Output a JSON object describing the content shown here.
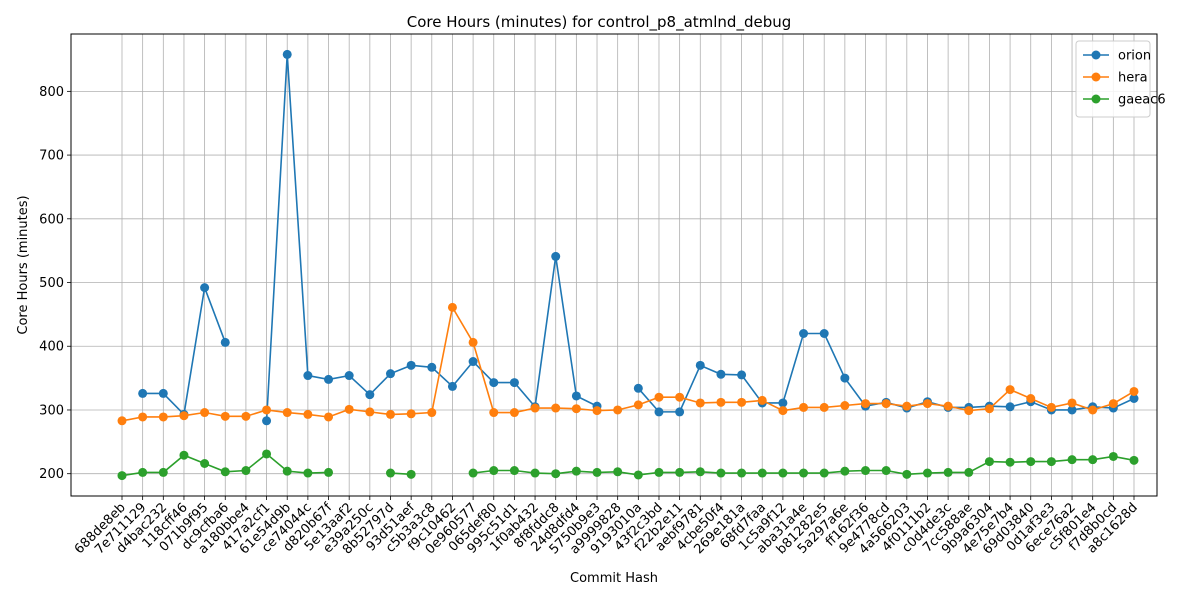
{
  "chart_data": {
    "type": "line",
    "title": "Core Hours (minutes) for control_p8_atmlnd_debug",
    "xlabel": "Commit Hash",
    "ylabel": "Core Hours (minutes)",
    "ylim": [
      165,
      890
    ],
    "yticks": [
      200,
      300,
      400,
      500,
      600,
      700,
      800
    ],
    "grid": true,
    "legend_position": "top-right",
    "categories": [
      "688de8eb",
      "7e711129",
      "d4bac232",
      "118cff46",
      "071b9f95",
      "dc9cfba6",
      "a180bbe4",
      "417a2cf1",
      "61e54d9b",
      "ce74044c",
      "d820b67f",
      "5e13aaf2",
      "e39a250c",
      "8b52797d",
      "93d51aef",
      "c5b3a3c8",
      "f9c10462",
      "0e960577",
      "065def80",
      "995c51d1",
      "1f0ab432",
      "8f8fddc8",
      "24d8dfd4",
      "5750b9e3",
      "a9999828",
      "9193010a",
      "43f2c3bd",
      "f22b2e11",
      "aebf9781",
      "4cbe50f4",
      "269e181a",
      "68fd7faa",
      "1c5a9f12",
      "aba31a4e",
      "b81282e5",
      "5a297a6e",
      "ff162f36",
      "9e4778cd",
      "4a566203",
      "4f0111b2",
      "c0d4de3c",
      "7cc588ae",
      "9b9a6304",
      "4e75e7b4",
      "69d03840",
      "0d1af3e3",
      "6ece76a2",
      "c5f801e4",
      "f7d8b0cd",
      "a8c1628d"
    ],
    "series": [
      {
        "name": "orion",
        "color": "#1f77b4",
        "values": [
          null,
          326,
          326,
          293,
          492,
          406,
          null,
          283,
          858,
          354,
          348,
          354,
          324,
          357,
          370,
          367,
          337,
          376,
          343,
          343,
          305,
          541,
          322,
          306,
          null,
          334,
          297,
          297,
          370,
          356,
          355,
          311,
          311,
          420,
          420,
          350,
          306,
          312,
          303,
          313,
          304,
          304,
          306,
          305,
          313,
          300,
          300,
          305,
          303,
          318
        ]
      },
      {
        "name": "hera",
        "color": "#ff7f0e",
        "values": [
          283,
          289,
          289,
          291,
          296,
          290,
          290,
          300,
          296,
          293,
          289,
          301,
          297,
          293,
          294,
          296,
          461,
          406,
          296,
          296,
          303,
          303,
          302,
          299,
          300,
          308,
          320,
          320,
          311,
          312,
          312,
          315,
          299,
          304,
          304,
          307,
          310,
          310,
          306,
          310,
          306,
          299,
          302,
          332,
          318,
          304,
          311,
          300,
          310,
          329
        ]
      },
      {
        "name": "gaeac6",
        "color": "#2ca02c",
        "values": [
          197,
          202,
          202,
          229,
          216,
          203,
          205,
          231,
          204,
          201,
          202,
          null,
          null,
          201,
          199,
          null,
          null,
          201,
          205,
          205,
          201,
          200,
          204,
          202,
          203,
          198,
          202,
          202,
          203,
          201,
          201,
          201,
          201,
          201,
          201,
          204,
          205,
          205,
          199,
          201,
          202,
          202,
          219,
          218,
          219,
          219,
          222,
          222,
          227,
          221
        ]
      }
    ]
  }
}
